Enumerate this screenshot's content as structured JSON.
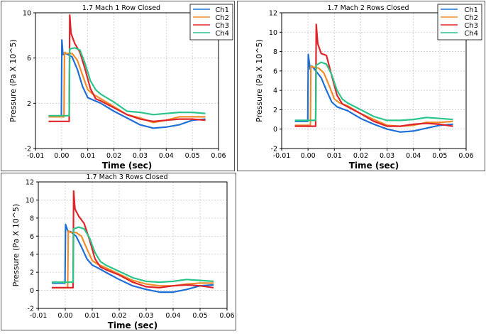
{
  "colors": {
    "Ch1": "#1f6fd6",
    "Ch2": "#f28c28",
    "Ch3": "#e0252a",
    "Ch4": "#2bc48a",
    "grid": "#c8c8c8",
    "axis": "#000000"
  },
  "chart_data": [
    {
      "type": "line",
      "title": "1.7 Mach  1 Row Closed",
      "xlabel": "Time (sec)",
      "ylabel": "Pressure (Pa X 10^5)",
      "xlim": [
        -0.01,
        0.06
      ],
      "ylim": [
        -2,
        10
      ],
      "xticks": [
        "-0.01",
        "0.00",
        "0.01",
        "0.02",
        "0.03",
        "0.04",
        "0.05",
        "0.06"
      ],
      "yticks": [
        "-2",
        "2",
        "6",
        "10"
      ],
      "grid": true,
      "legend_position": "top-right",
      "series": [
        {
          "name": "Ch1",
          "x": [
            -0.005,
            -0.0001,
            0.0001,
            0.0005,
            0.0015,
            0.0025,
            0.004,
            0.006,
            0.008,
            0.01,
            0.012,
            0.015,
            0.02,
            0.025,
            0.03,
            0.035,
            0.04,
            0.045,
            0.05,
            0.055
          ],
          "y": [
            0.8,
            0.8,
            7.6,
            6.3,
            6.4,
            6.3,
            6.1,
            5.0,
            3.5,
            2.5,
            2.3,
            2.0,
            1.3,
            0.7,
            0.1,
            -0.2,
            -0.1,
            0.1,
            0.5,
            0.6
          ]
        },
        {
          "name": "Ch2",
          "x": [
            -0.005,
            0.0009,
            0.0011,
            0.002,
            0.004,
            0.006,
            0.008,
            0.01,
            0.012,
            0.015,
            0.02,
            0.025,
            0.03,
            0.035,
            0.04,
            0.045,
            0.05,
            0.055
          ],
          "y": [
            0.8,
            0.8,
            6.5,
            6.4,
            6.4,
            5.8,
            4.5,
            3.2,
            2.8,
            2.4,
            1.7,
            1.0,
            0.7,
            0.3,
            0.5,
            0.8,
            0.8,
            0.8
          ]
        },
        {
          "name": "Ch3",
          "x": [
            -0.005,
            0.0029,
            0.0031,
            0.0036,
            0.005,
            0.007,
            0.009,
            0.011,
            0.013,
            0.015,
            0.02,
            0.025,
            0.03,
            0.035,
            0.04,
            0.045,
            0.05,
            0.055
          ],
          "y": [
            0.4,
            0.4,
            9.8,
            8.2,
            7.3,
            6.5,
            5.0,
            3.3,
            2.4,
            2.2,
            1.6,
            1.0,
            0.6,
            0.4,
            0.5,
            0.6,
            0.6,
            0.5
          ]
        },
        {
          "name": "Ch4",
          "x": [
            -0.005,
            0.0029,
            0.0031,
            0.005,
            0.007,
            0.009,
            0.011,
            0.013,
            0.015,
            0.02,
            0.025,
            0.03,
            0.035,
            0.04,
            0.045,
            0.05,
            0.055
          ],
          "y": [
            0.9,
            0.9,
            6.8,
            6.9,
            6.7,
            5.5,
            4.0,
            3.2,
            2.8,
            2.1,
            1.3,
            1.2,
            1.0,
            1.1,
            1.2,
            1.2,
            1.1
          ]
        }
      ]
    },
    {
      "type": "line",
      "title": "1.7 Mach  2 Rows Closed",
      "xlabel": "Time (sec)",
      "ylabel": "Pressure (Pa X 10^5)",
      "xlim": [
        -0.01,
        0.06
      ],
      "ylim": [
        -2,
        12
      ],
      "xticks": [
        "-0.01",
        "0.00",
        "0.01",
        "0.02",
        "0.03",
        "0.04",
        "0.05",
        "0.06"
      ],
      "yticks": [
        "-2",
        "0",
        "2",
        "4",
        "6",
        "8",
        "10",
        "12"
      ],
      "grid": true,
      "legend_position": "top-right",
      "series": [
        {
          "name": "Ch1",
          "x": [
            -0.005,
            -0.0001,
            0.0001,
            0.0008,
            0.0015,
            0.003,
            0.005,
            0.007,
            0.009,
            0.011,
            0.013,
            0.015,
            0.02,
            0.025,
            0.03,
            0.035,
            0.04,
            0.045,
            0.05,
            0.055
          ],
          "y": [
            0.8,
            0.8,
            7.7,
            6.2,
            6.5,
            6.0,
            5.3,
            4.0,
            2.8,
            2.3,
            2.1,
            1.9,
            1.1,
            0.5,
            0.0,
            -0.3,
            -0.2,
            0.1,
            0.4,
            0.5
          ]
        },
        {
          "name": "Ch2",
          "x": [
            -0.005,
            0.0009,
            0.0011,
            0.002,
            0.004,
            0.006,
            0.008,
            0.01,
            0.012,
            0.015,
            0.02,
            0.025,
            0.03,
            0.035,
            0.04,
            0.045,
            0.05,
            0.055
          ],
          "y": [
            0.4,
            0.4,
            6.5,
            6.4,
            6.3,
            5.8,
            4.5,
            3.1,
            2.7,
            2.4,
            1.6,
            1.0,
            0.4,
            0.3,
            0.4,
            0.7,
            0.7,
            0.8
          ]
        },
        {
          "name": "Ch3",
          "x": [
            -0.005,
            0.0029,
            0.0031,
            0.0037,
            0.005,
            0.007,
            0.009,
            0.011,
            0.013,
            0.015,
            0.02,
            0.025,
            0.03,
            0.035,
            0.04,
            0.045,
            0.05,
            0.055
          ],
          "y": [
            0.3,
            0.3,
            10.8,
            8.8,
            7.8,
            7.6,
            5.5,
            3.5,
            2.6,
            2.3,
            1.6,
            0.8,
            0.3,
            0.3,
            0.5,
            0.6,
            0.5,
            0.3
          ]
        },
        {
          "name": "Ch4",
          "x": [
            -0.005,
            0.0029,
            0.0031,
            0.005,
            0.007,
            0.009,
            0.011,
            0.013,
            0.015,
            0.02,
            0.025,
            0.03,
            0.035,
            0.04,
            0.045,
            0.05,
            0.055
          ],
          "y": [
            0.9,
            0.9,
            6.6,
            6.9,
            6.7,
            5.6,
            4.0,
            3.1,
            2.7,
            2.0,
            1.3,
            0.9,
            0.9,
            1.0,
            1.2,
            1.1,
            1.0
          ]
        }
      ]
    },
    {
      "type": "line",
      "title": "1.7 Mach  3 Rows Closed",
      "xlabel": "Time (sec)",
      "ylabel": "Pressure (Pa X 10^5)",
      "xlim": [
        -0.01,
        0.06
      ],
      "ylim": [
        -2,
        12
      ],
      "xticks": [
        "-0.01",
        "0.00",
        "0.01",
        "0.02",
        "0.03",
        "0.04",
        "0.05",
        "0.06"
      ],
      "yticks": [
        "-2",
        "0",
        "2",
        "4",
        "6",
        "8",
        "10",
        "12"
      ],
      "grid": true,
      "legend_position": "none",
      "series": [
        {
          "name": "Ch1",
          "x": [
            -0.005,
            -0.0001,
            0.0001,
            0.001,
            0.002,
            0.004,
            0.006,
            0.008,
            0.01,
            0.012,
            0.015,
            0.02,
            0.025,
            0.03,
            0.035,
            0.04,
            0.045,
            0.05,
            0.055
          ],
          "y": [
            0.8,
            0.8,
            7.3,
            6.5,
            6.5,
            6.0,
            4.8,
            3.5,
            2.8,
            2.5,
            2.0,
            1.2,
            0.5,
            0.1,
            -0.2,
            -0.2,
            0.1,
            0.5,
            0.6
          ]
        },
        {
          "name": "Ch2",
          "x": [
            -0.005,
            0.0009,
            0.0011,
            0.002,
            0.004,
            0.006,
            0.008,
            0.01,
            0.012,
            0.015,
            0.02,
            0.025,
            0.03,
            0.035,
            0.04,
            0.045,
            0.05,
            0.055
          ],
          "y": [
            0.3,
            0.3,
            6.6,
            6.4,
            6.4,
            6.0,
            4.6,
            3.3,
            2.9,
            2.5,
            1.8,
            1.1,
            0.7,
            0.5,
            0.5,
            0.7,
            0.8,
            0.8
          ]
        },
        {
          "name": "Ch3",
          "x": [
            -0.005,
            0.0029,
            0.0031,
            0.0036,
            0.005,
            0.007,
            0.009,
            0.011,
            0.013,
            0.015,
            0.02,
            0.025,
            0.03,
            0.035,
            0.04,
            0.045,
            0.05,
            0.055
          ],
          "y": [
            0.3,
            0.3,
            11.0,
            9.0,
            8.2,
            7.4,
            5.6,
            3.5,
            2.6,
            2.3,
            1.7,
            0.9,
            0.4,
            0.3,
            0.5,
            0.6,
            0.5,
            0.3
          ]
        },
        {
          "name": "Ch4",
          "x": [
            -0.005,
            0.0029,
            0.0031,
            0.005,
            0.007,
            0.009,
            0.011,
            0.013,
            0.015,
            0.02,
            0.025,
            0.03,
            0.035,
            0.04,
            0.045,
            0.05,
            0.055
          ],
          "y": [
            0.9,
            0.9,
            6.8,
            7.0,
            6.8,
            5.8,
            4.2,
            3.2,
            2.8,
            2.1,
            1.4,
            1.0,
            0.9,
            1.0,
            1.2,
            1.1,
            1.0
          ]
        }
      ]
    }
  ]
}
